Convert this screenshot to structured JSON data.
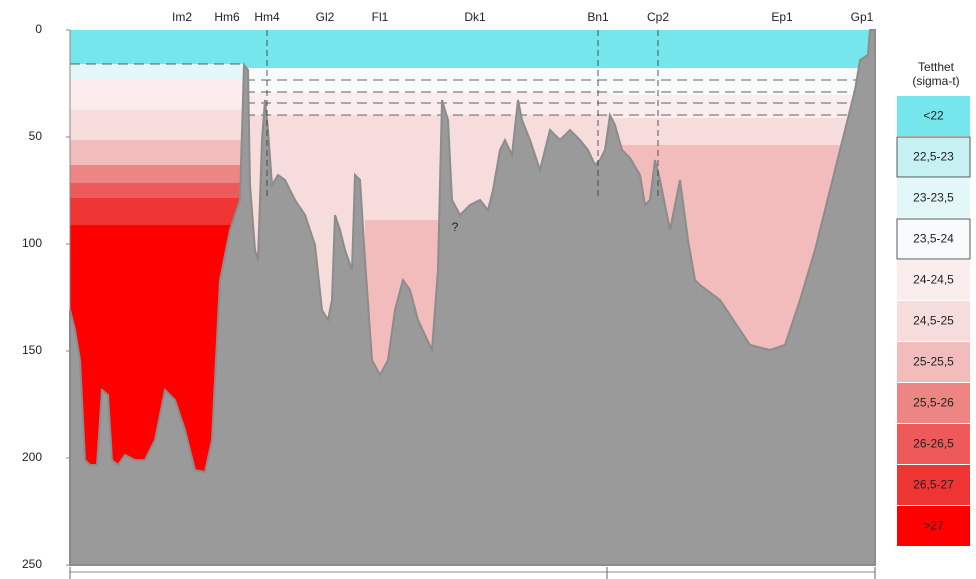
{
  "chart_data": {
    "type": "section",
    "stations": [
      "Im2",
      "Hm6",
      "Hm4",
      "Gl2",
      "Fl1",
      "Dk1",
      "Bn1",
      "Cp2",
      "Ep1",
      "Gp1"
    ],
    "ylim": [
      0,
      250
    ],
    "yticks": [
      0,
      50,
      100,
      150,
      200,
      250
    ],
    "inverted": true,
    "annotation": "?",
    "legend_title": "Tetthet (sigma-t)",
    "series": [
      {
        "name": "<22",
        "color": "#74e6ec"
      },
      {
        "name": "22,5-23",
        "color": "#c6f1f3"
      },
      {
        "name": "23-23,5",
        "color": "#e4f7f8"
      },
      {
        "name": "23,5-24",
        "color": "#f7fbfb"
      },
      {
        "name": "24-24,5",
        "color": "#fbeded"
      },
      {
        "name": "24,5-25",
        "color": "#f7dcdc"
      },
      {
        "name": "25-25,5",
        "color": "#f3bcbc"
      },
      {
        "name": "25,5-26",
        "color": "#ee8585"
      },
      {
        "name": "26-26,5",
        "color": "#ee5a5a"
      },
      {
        "name": "26,5-27",
        "color": "#ef3434"
      },
      {
        "name": ">27",
        "color": "#ff0000"
      }
    ]
  }
}
